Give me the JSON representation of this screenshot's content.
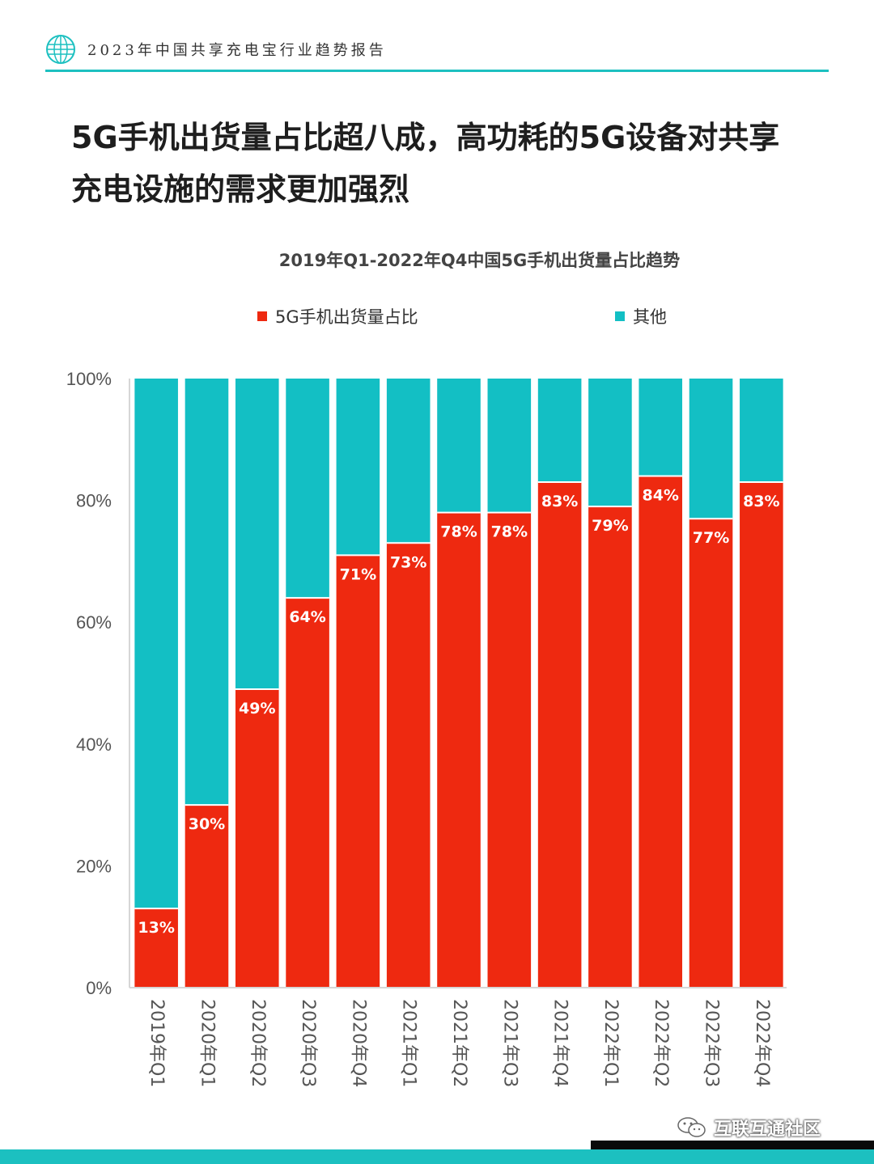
{
  "header": {
    "report_name": "2023年中国共享充电宝行业趋势报告"
  },
  "headline": {
    "line1": "5G手机出货量占比超八成，高功耗的5G设备对共享",
    "line2": "充电设施的需求更加强烈"
  },
  "watermark": {
    "text": "互联互通社区",
    "icon": "wechat-icon"
  },
  "colors": {
    "accent": "#1cc0c0",
    "series_5g": "#ee2910",
    "series_other": "#13bfc4"
  },
  "chart_data": {
    "type": "bar",
    "stacked": true,
    "title": "2019年Q1-2022年Q4中国5G手机出货量占比趋势",
    "legend_position": "top",
    "grid": false,
    "categories": [
      "2019年Q1",
      "2020年Q1",
      "2020年Q2",
      "2020年Q3",
      "2020年Q4",
      "2021年Q1",
      "2021年Q2",
      "2021年Q3",
      "2021年Q4",
      "2022年Q1",
      "2022年Q2",
      "2022年Q3",
      "2022年Q4"
    ],
    "series": [
      {
        "name": "5G手机出货量占比",
        "color": "#ee2910",
        "values": [
          13,
          30,
          49,
          64,
          71,
          73,
          78,
          78,
          83,
          79,
          84,
          77,
          83
        ],
        "data_labels": [
          "13%",
          "30%",
          "49%",
          "64%",
          "71%",
          "73%",
          "78%",
          "78%",
          "83%",
          "79%",
          "84%",
          "77%",
          "83%"
        ]
      },
      {
        "name": "其他",
        "color": "#13bfc4",
        "values": [
          87,
          70,
          51,
          36,
          29,
          27,
          22,
          22,
          17,
          21,
          16,
          23,
          17
        ]
      }
    ],
    "yticks": [
      "0%",
      "20%",
      "40%",
      "60%",
      "80%",
      "100%"
    ],
    "ylim": [
      0,
      100
    ]
  }
}
